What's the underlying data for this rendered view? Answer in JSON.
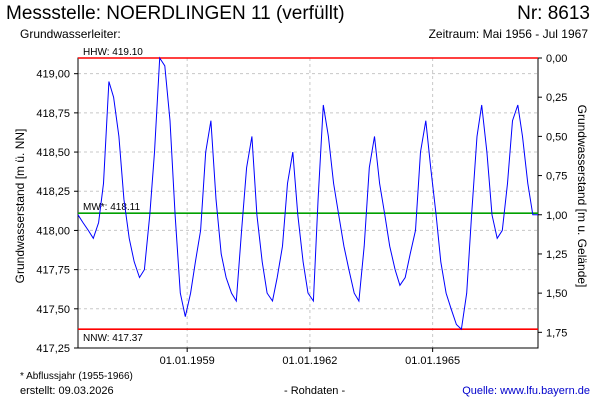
{
  "header": {
    "title": "Messstelle: NOERDLINGEN 11 (verfüllt)",
    "nr": "Nr: 8613",
    "aquifer": "Grundwasserleiter:",
    "period": "Zeitraum: Mai 1956 - Jul 1967"
  },
  "footer": {
    "footnote": "* Abflussjahr (1955-1966)",
    "created": "erstellt:  09.03.2026",
    "rawdata": "- Rohdaten -",
    "source_label": "Quelle:",
    "source_url": "www.lfu.bayern.de"
  },
  "colors": {
    "series": "#0000ff",
    "max_line": "#ff0000",
    "min_line": "#ff0000",
    "mean_line": "#00a000",
    "grid": "#c8c8c8"
  },
  "chart_data": {
    "type": "line",
    "ylabel": "Grundwasserstand [m ü. NN]",
    "y2label": "Grundwasserstand [m u. Gelände]",
    "ylim": [
      417.25,
      419.1
    ],
    "yticks": [
      "417,25",
      "417,50",
      "417,75",
      "418,00",
      "418,25",
      "418,50",
      "418,75",
      "419,00"
    ],
    "yticks_values": [
      417.25,
      417.5,
      417.75,
      418.0,
      418.25,
      418.5,
      418.75,
      419.0
    ],
    "y2ticks": [
      "0,00",
      "0,25",
      "0,50",
      "0,75",
      "1,00",
      "1,25",
      "1,50",
      "1,75"
    ],
    "y2ticks_values": [
      419.1,
      418.85,
      418.6,
      418.35,
      418.1,
      417.85,
      417.6,
      417.35
    ],
    "xlim": [
      "1956-05-01",
      "1967-07-31"
    ],
    "xticks": [
      "01.01.1959",
      "01.01.1962",
      "01.01.1965"
    ],
    "xticks_values": [
      "1959-01-01",
      "1962-01-01",
      "1965-01-01"
    ],
    "grid": true,
    "reference_lines": [
      {
        "label": "HHW: 419.10",
        "value": 419.1,
        "kind": "max"
      },
      {
        "label": "MW*: 418.11",
        "value": 418.11,
        "kind": "mean"
      },
      {
        "label": "NNW: 417.37",
        "value": 417.37,
        "kind": "min"
      }
    ],
    "series": [
      {
        "x": [
          "1956-05-01",
          "1956-06-15",
          "1956-08-01",
          "1956-09-15",
          "1956-11-01",
          "1956-12-15",
          "1957-02-01",
          "1957-03-15",
          "1957-05-01",
          "1957-06-15",
          "1957-08-01",
          "1957-09-15",
          "1957-11-01",
          "1957-12-15",
          "1958-02-01",
          "1958-03-15",
          "1958-05-01",
          "1958-06-15",
          "1958-08-01",
          "1958-09-15",
          "1958-11-01",
          "1958-12-15",
          "1959-02-01",
          "1959-03-15",
          "1959-05-01",
          "1959-06-15",
          "1959-08-01",
          "1959-09-15",
          "1959-11-01",
          "1959-12-15",
          "1960-02-01",
          "1960-03-15",
          "1960-05-01",
          "1960-06-15",
          "1960-08-01",
          "1960-09-15",
          "1960-11-01",
          "1960-12-15",
          "1961-02-01",
          "1961-03-15",
          "1961-05-01",
          "1961-06-15",
          "1961-08-01",
          "1961-09-15",
          "1961-11-01",
          "1961-12-15",
          "1962-02-01",
          "1962-03-15",
          "1962-05-01",
          "1962-06-15",
          "1962-08-01",
          "1962-09-15",
          "1962-11-01",
          "1962-12-15",
          "1963-02-01",
          "1963-03-15",
          "1963-05-01",
          "1963-06-15",
          "1963-08-01",
          "1963-09-15",
          "1963-11-01",
          "1963-12-15",
          "1964-02-01",
          "1964-03-15",
          "1964-05-01",
          "1964-06-15",
          "1964-08-01",
          "1964-09-15",
          "1964-11-01",
          "1964-12-15",
          "1965-02-01",
          "1965-03-15",
          "1965-05-01",
          "1965-06-15",
          "1965-08-01",
          "1965-09-15",
          "1965-11-01",
          "1965-12-15",
          "1966-02-01",
          "1966-03-15",
          "1966-05-01",
          "1966-06-15",
          "1966-08-01",
          "1966-09-15",
          "1966-11-01",
          "1966-12-15",
          "1967-02-01",
          "1967-03-15",
          "1967-05-01",
          "1967-06-15",
          "1967-07-31"
        ],
        "values": [
          418.1,
          418.05,
          418.0,
          417.95,
          418.05,
          418.3,
          418.95,
          418.85,
          418.6,
          418.2,
          417.95,
          417.8,
          417.7,
          417.75,
          418.1,
          418.5,
          419.1,
          419.05,
          418.7,
          418.1,
          417.6,
          417.45,
          417.6,
          417.8,
          418.0,
          418.5,
          418.7,
          418.2,
          417.85,
          417.7,
          417.6,
          417.55,
          418.0,
          418.4,
          418.6,
          418.1,
          417.8,
          417.6,
          417.55,
          417.7,
          417.9,
          418.3,
          418.5,
          418.1,
          417.8,
          417.6,
          417.55,
          418.2,
          418.8,
          418.6,
          418.3,
          418.1,
          417.9,
          417.75,
          417.6,
          417.55,
          417.9,
          418.4,
          418.6,
          418.3,
          418.1,
          417.9,
          417.75,
          417.65,
          417.7,
          417.85,
          418.0,
          418.5,
          418.7,
          418.4,
          418.1,
          417.8,
          417.6,
          417.5,
          417.4,
          417.37,
          417.6,
          418.1,
          418.6,
          418.8,
          418.5,
          418.1,
          417.95,
          418.0,
          418.3,
          418.7,
          418.8,
          418.6,
          418.3,
          418.1,
          418.1
        ]
      }
    ]
  }
}
